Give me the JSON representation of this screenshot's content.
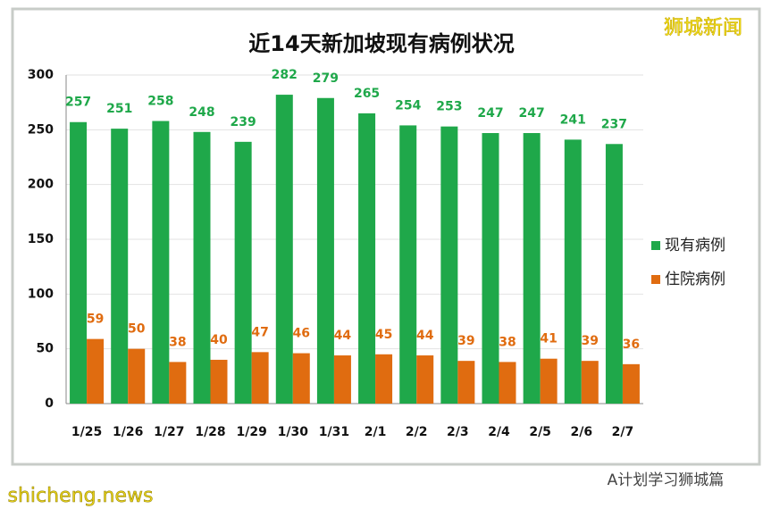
{
  "chart_data": {
    "type": "bar",
    "title": "近14天新加坡现有病例状况",
    "categories": [
      "1/25",
      "1/26",
      "1/27",
      "1/28",
      "1/29",
      "1/30",
      "1/31",
      "2/1",
      "2/2",
      "2/3",
      "2/4",
      "2/5",
      "2/6",
      "2/7"
    ],
    "series": [
      {
        "name": "现有病例",
        "color": "#1fa84a",
        "values": [
          257,
          251,
          258,
          248,
          239,
          282,
          279,
          265,
          254,
          253,
          247,
          247,
          241,
          237
        ]
      },
      {
        "name": "住院病例",
        "color": "#e06c10",
        "values": [
          59,
          50,
          38,
          40,
          47,
          46,
          44,
          45,
          44,
          39,
          38,
          41,
          39,
          36
        ]
      }
    ],
    "ylim": [
      0,
      300
    ],
    "yticks": [
      0,
      50,
      100,
      150,
      200,
      250,
      300
    ],
    "grid": true,
    "legend": "right"
  },
  "brand": "狮城新闻",
  "credit": "A计划学习狮城篇",
  "site": "shicheng.news"
}
